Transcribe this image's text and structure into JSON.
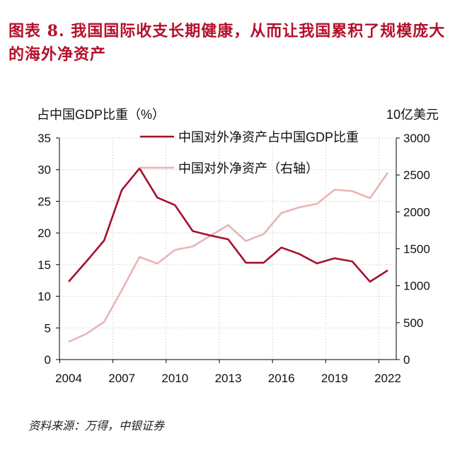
{
  "title": "图表 8. 我国国际收支长期健康，从而让我国累积了规模庞大的海外净资产",
  "source": "资料来源：万得，中银证券",
  "chart_data": {
    "type": "line",
    "title": "图表 8. 我国国际收支长期健康，从而让我国累积了规模庞大的海外净资产",
    "ylabel": "占中国GDP比重（%）",
    "ylabel_right": "10亿美元",
    "x": [
      2004,
      2005,
      2006,
      2007,
      2008,
      2009,
      2010,
      2011,
      2012,
      2013,
      2014,
      2015,
      2016,
      2017,
      2018,
      2019,
      2020,
      2021,
      2022
    ],
    "xticks": [
      "2004",
      "2007",
      "2010",
      "2013",
      "2016",
      "2019",
      "2022"
    ],
    "ylim": [
      0,
      35
    ],
    "yticks": [
      0,
      5,
      10,
      15,
      20,
      25,
      30,
      35
    ],
    "ylim_right": [
      0,
      3000
    ],
    "yticks_right": [
      0,
      500,
      1000,
      1500,
      2000,
      2500,
      3000
    ],
    "grid": true,
    "legend_position": "top-center",
    "series": [
      {
        "name": "中国对外净资产占中国GDP比重",
        "axis": "left",
        "color": "#a50f2d",
        "values": [
          12.3,
          15.5,
          18.8,
          26.8,
          30.2,
          25.6,
          24.4,
          20.3,
          19.6,
          19.0,
          15.3,
          15.3,
          17.7,
          16.7,
          15.2,
          16.0,
          15.5,
          12.3,
          14.1
        ]
      },
      {
        "name": "中国对外净资产（右轴）",
        "axis": "right",
        "color": "#e9b4b4",
        "values": [
          240,
          350,
          510,
          940,
          1390,
          1300,
          1485,
          1533,
          1677,
          1821,
          1604,
          1700,
          1984,
          2061,
          2109,
          2300,
          2281,
          2185,
          2530
        ]
      }
    ]
  }
}
